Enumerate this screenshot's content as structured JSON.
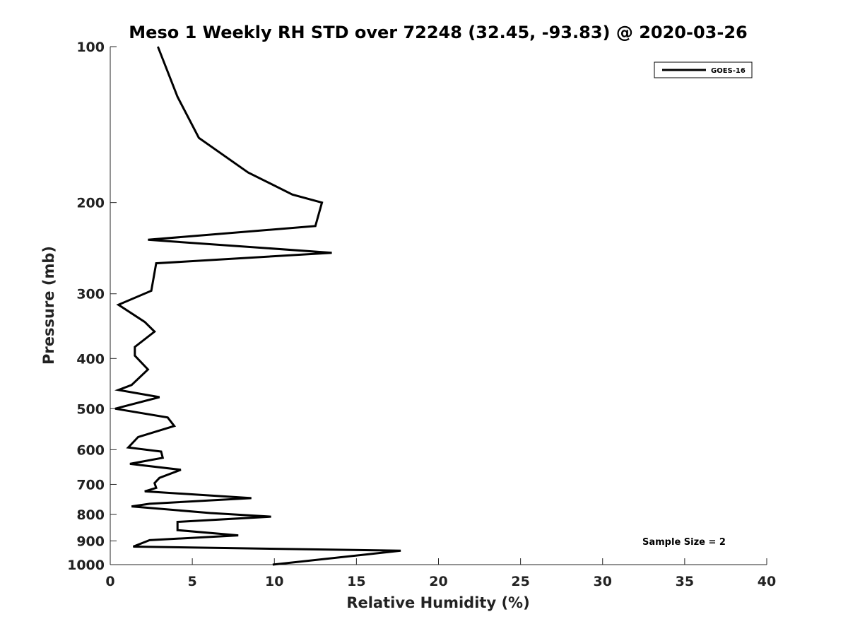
{
  "chart_data": {
    "type": "line",
    "title": "Meso 1 Weekly RH STD over 72248 (32.45, -93.83) @ 2020-03-26",
    "xlabel": "Relative Humidity (%)",
    "ylabel": "Pressure (mb)",
    "xlim": [
      0,
      40
    ],
    "ylim": [
      100,
      1000
    ],
    "yscale": "log",
    "y_reversed": true,
    "grid": false,
    "legend_position": "top-right",
    "x_ticks": [
      0,
      5,
      10,
      15,
      20,
      25,
      30,
      35,
      40
    ],
    "x_tick_labels": [
      "0",
      "5",
      "10",
      "15",
      "20",
      "25",
      "30",
      "35",
      "40"
    ],
    "y_ticks": [
      100,
      200,
      300,
      400,
      500,
      600,
      700,
      800,
      900,
      1000
    ],
    "y_tick_labels": [
      "100",
      "200",
      "300",
      "400",
      "500",
      "600",
      "700",
      "800",
      "900",
      "1000"
    ],
    "series": [
      {
        "name": "GOES-16",
        "color": "#000000",
        "points": [
          [
            2.9,
            100
          ],
          [
            4.1,
            125
          ],
          [
            5.4,
            150
          ],
          [
            8.4,
            175
          ],
          [
            11.1,
            193
          ],
          [
            12.9,
            200
          ],
          [
            12.5,
            222
          ],
          [
            2.3,
            236
          ],
          [
            13.5,
            250
          ],
          [
            2.8,
            262
          ],
          [
            2.5,
            296
          ],
          [
            0.5,
            315
          ],
          [
            2.1,
            340
          ],
          [
            2.7,
            355
          ],
          [
            1.5,
            380
          ],
          [
            1.5,
            395
          ],
          [
            2.3,
            420
          ],
          [
            1.3,
            450
          ],
          [
            0.5,
            460
          ],
          [
            3.0,
            475
          ],
          [
            0.3,
            500
          ],
          [
            3.5,
            520
          ],
          [
            3.9,
            540
          ],
          [
            1.7,
            567
          ],
          [
            1.1,
            594
          ],
          [
            3.1,
            605
          ],
          [
            3.2,
            622
          ],
          [
            1.2,
            639
          ],
          [
            4.3,
            656
          ],
          [
            3.0,
            680
          ],
          [
            2.7,
            696
          ],
          [
            2.8,
            711
          ],
          [
            2.1,
            722
          ],
          [
            8.6,
            744
          ],
          [
            2.4,
            763
          ],
          [
            1.3,
            772
          ],
          [
            6.1,
            795
          ],
          [
            9.8,
            808
          ],
          [
            4.1,
            827
          ],
          [
            4.1,
            858
          ],
          [
            7.8,
            878
          ],
          [
            2.4,
            897
          ],
          [
            1.4,
            923
          ],
          [
            17.7,
            940
          ],
          [
            9.9,
            1000
          ]
        ]
      }
    ],
    "annotations": [
      "Sample Size = 2"
    ]
  }
}
